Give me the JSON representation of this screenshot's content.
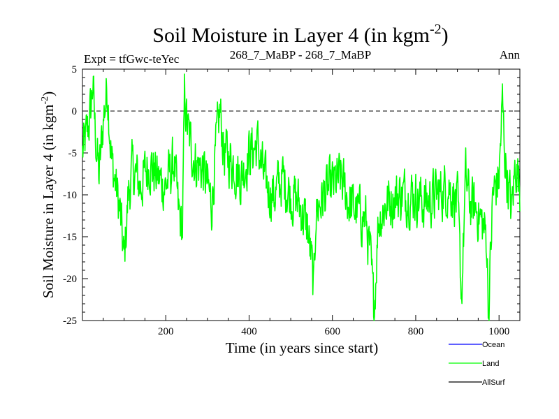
{
  "chart_data": {
    "type": "line",
    "title": "Soil Moisture in Layer 4 (in kgm",
    "title_sup": "-2",
    "title_close": ")",
    "subtitle_left": "Expt = tfGwc-teYec",
    "subtitle_center": "268_7_MaBP - 268_7_MaBP",
    "subtitle_right": "Ann",
    "xlabel": "Time (in years since start)",
    "ylabel": "Soil Moisture in Layer 4 (in kgm",
    "ylabel_sup": "-2",
    "ylabel_close": ")",
    "xlim": [
      0,
      1050
    ],
    "ylim": [
      -25,
      5
    ],
    "x_ticks": [
      200,
      400,
      600,
      800,
      1000
    ],
    "x_tick_labels": [
      "200",
      "400",
      "600",
      "800",
      "1000"
    ],
    "y_ticks": [
      5,
      0,
      -5,
      -10,
      -15,
      -20,
      -25
    ],
    "y_tick_labels": [
      "5",
      "0",
      "-5",
      "-10",
      "-15",
      "-20",
      "-25"
    ],
    "reference_line": 0,
    "series": [
      {
        "name": "Land",
        "color": "#00ff00",
        "x_start": 0,
        "x_end": 1050,
        "anchors": [
          [
            0,
            -5
          ],
          [
            10,
            -3
          ],
          [
            20,
            0
          ],
          [
            25,
            3.5
          ],
          [
            30,
            -2
          ],
          [
            40,
            -8
          ],
          [
            50,
            -1
          ],
          [
            60,
            3
          ],
          [
            70,
            -6
          ],
          [
            80,
            -9
          ],
          [
            90,
            -12
          ],
          [
            100,
            -18
          ],
          [
            110,
            -10
          ],
          [
            120,
            -7
          ],
          [
            140,
            -9
          ],
          [
            160,
            -6
          ],
          [
            180,
            -8
          ],
          [
            200,
            -9
          ],
          [
            220,
            -6
          ],
          [
            230,
            -12
          ],
          [
            240,
            -14
          ],
          [
            245,
            1.5
          ],
          [
            255,
            -3
          ],
          [
            270,
            -6
          ],
          [
            290,
            -7
          ],
          [
            300,
            -9
          ],
          [
            310,
            -11
          ],
          [
            320,
            -5
          ],
          [
            330,
            0
          ],
          [
            340,
            -5
          ],
          [
            360,
            -6
          ],
          [
            380,
            -8
          ],
          [
            400,
            -5
          ],
          [
            420,
            -4
          ],
          [
            440,
            -9
          ],
          [
            460,
            -10
          ],
          [
            480,
            -8
          ],
          [
            500,
            -10
          ],
          [
            520,
            -11
          ],
          [
            540,
            -14
          ],
          [
            550,
            -18
          ],
          [
            555,
            -22
          ],
          [
            560,
            -12
          ],
          [
            580,
            -10
          ],
          [
            600,
            -9
          ],
          [
            620,
            -8
          ],
          [
            640,
            -11
          ],
          [
            660,
            -12
          ],
          [
            680,
            -13
          ],
          [
            690,
            -17
          ],
          [
            700,
            -24
          ],
          [
            710,
            -13
          ],
          [
            730,
            -11
          ],
          [
            760,
            -10
          ],
          [
            800,
            -10
          ],
          [
            820,
            -11
          ],
          [
            850,
            -10
          ],
          [
            880,
            -9
          ],
          [
            900,
            -11
          ],
          [
            910,
            -22
          ],
          [
            920,
            -8
          ],
          [
            930,
            -11
          ],
          [
            950,
            -12
          ],
          [
            970,
            -15
          ],
          [
            975,
            -24
          ],
          [
            985,
            -10
          ],
          [
            1000,
            -8
          ],
          [
            1008,
            1
          ],
          [
            1015,
            -6
          ],
          [
            1030,
            -12
          ],
          [
            1040,
            -6
          ],
          [
            1050,
            -9
          ]
        ],
        "noise_amplitude": 2.8,
        "points": 1050
      },
      {
        "name": "Ocean",
        "color": "#0000ff",
        "values": []
      },
      {
        "name": "AllSurf",
        "color": "#000000",
        "values": []
      }
    ],
    "legend": [
      {
        "label": "Ocean",
        "color": "#0000ff"
      },
      {
        "label": "Land",
        "color": "#00ff00"
      },
      {
        "label": "AllSurf",
        "color": "#000000"
      }
    ],
    "legend_position": "bottom-right"
  }
}
